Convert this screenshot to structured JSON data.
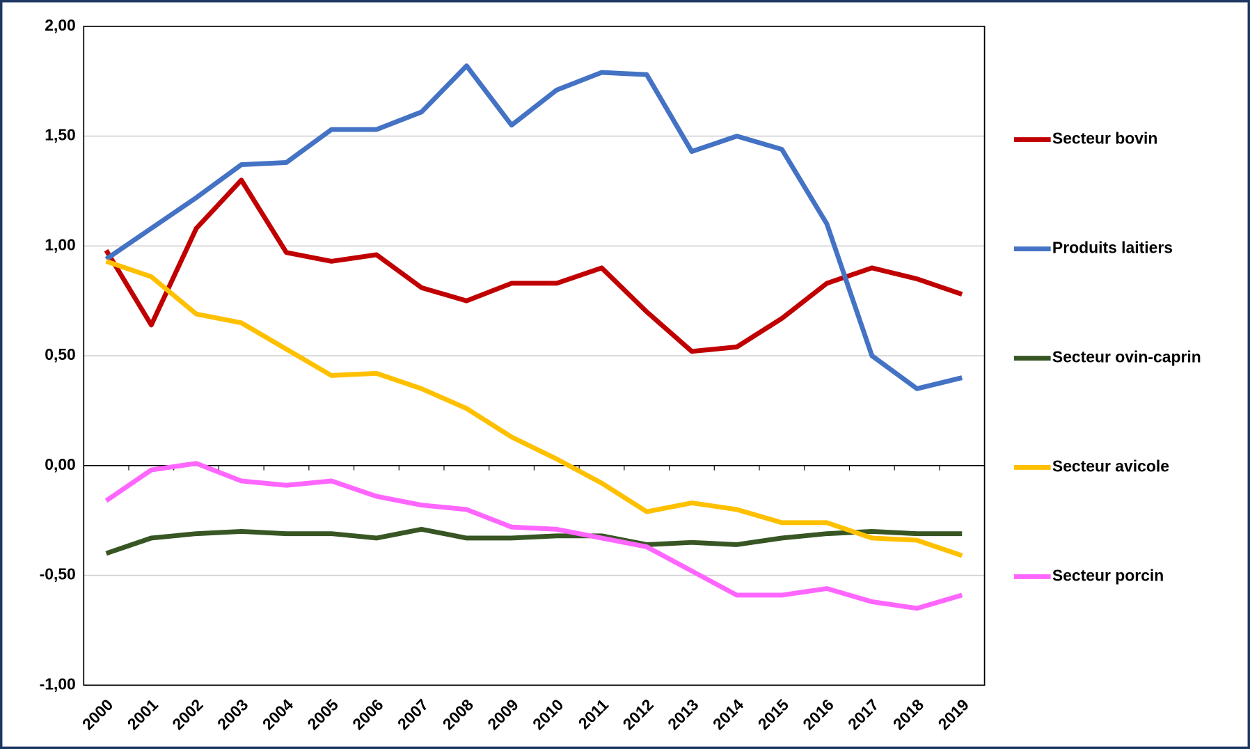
{
  "chart_data": {
    "type": "line",
    "categories": [
      "2000",
      "2001",
      "2002",
      "2003",
      "2004",
      "2005",
      "2006",
      "2007",
      "2008",
      "2009",
      "2010",
      "2011",
      "2012",
      "2013",
      "2014",
      "2015",
      "2016",
      "2017",
      "2018",
      "2019"
    ],
    "series": [
      {
        "name": "Secteur bovin",
        "color": "#c00000",
        "values": [
          0.98,
          0.64,
          1.08,
          1.3,
          0.97,
          0.93,
          0.96,
          0.81,
          0.75,
          0.83,
          0.83,
          0.9,
          0.7,
          0.52,
          0.54,
          0.67,
          0.83,
          0.9,
          0.85,
          0.78
        ]
      },
      {
        "name": "Produits laitiers",
        "color": "#4472c4",
        "values": [
          0.94,
          1.08,
          1.22,
          1.37,
          1.38,
          1.53,
          1.53,
          1.61,
          1.82,
          1.55,
          1.71,
          1.79,
          1.78,
          1.43,
          1.5,
          1.44,
          1.1,
          0.5,
          0.35,
          0.4
        ]
      },
      {
        "name": "Secteur ovin-caprin",
        "color": "#375623",
        "values": [
          -0.4,
          -0.33,
          -0.31,
          -0.3,
          -0.31,
          -0.31,
          -0.33,
          -0.29,
          -0.33,
          -0.33,
          -0.32,
          -0.32,
          -0.36,
          -0.35,
          -0.36,
          -0.33,
          -0.31,
          -0.3,
          -0.31,
          -0.31
        ]
      },
      {
        "name": "Secteur avicole",
        "color": "#ffc000",
        "values": [
          0.93,
          0.86,
          0.69,
          0.65,
          0.53,
          0.41,
          0.42,
          0.35,
          0.26,
          0.13,
          0.03,
          -0.08,
          -0.21,
          -0.17,
          -0.2,
          -0.26,
          -0.26,
          -0.33,
          -0.34,
          -0.41
        ]
      },
      {
        "name": "Secteur porcin",
        "color": "#ff66ff",
        "values": [
          -0.16,
          -0.02,
          0.01,
          -0.07,
          -0.09,
          -0.07,
          -0.14,
          -0.18,
          -0.2,
          -0.28,
          -0.29,
          -0.33,
          -0.37,
          -0.48,
          -0.59,
          -0.59,
          -0.56,
          -0.62,
          -0.65,
          -0.59
        ]
      }
    ],
    "ylim": [
      -1,
      2
    ],
    "yticks": [
      {
        "value": -1,
        "label": "-1,00"
      },
      {
        "value": -0.5,
        "label": "-0,50"
      },
      {
        "value": 0,
        "label": "0,00"
      },
      {
        "value": 0.5,
        "label": "0,50"
      },
      {
        "value": 1,
        "label": "1,00"
      },
      {
        "value": 1.5,
        "label": "1,50"
      },
      {
        "value": 2,
        "label": "2,00"
      }
    ],
    "grid": true,
    "legend": "right"
  }
}
